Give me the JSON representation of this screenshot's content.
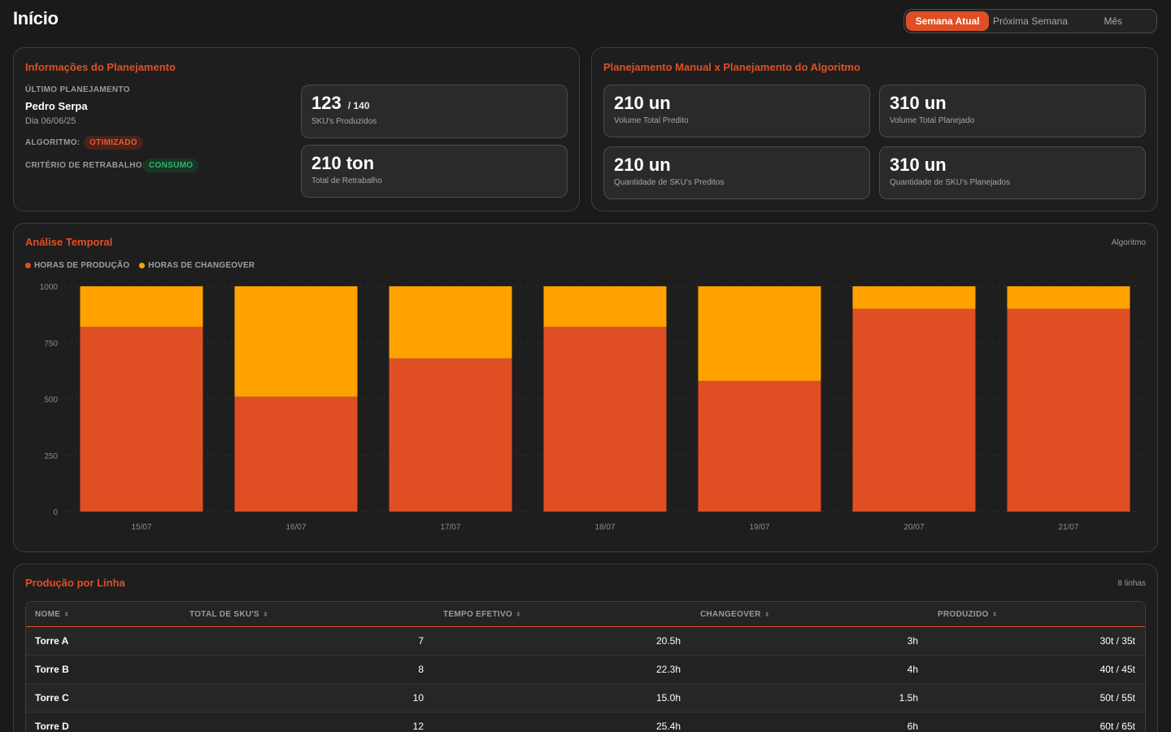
{
  "header": {
    "title": "Início",
    "periods": [
      "Semana Atual",
      "Próxima Semana",
      "Mês"
    ],
    "active_period": "Semana Atual"
  },
  "info_panel": {
    "title": "Informações do Planejamento",
    "last_planning_label": "ÚLTIMO PLANEJAMENTO",
    "planner": "Pedro Serpa",
    "date": "Dia 06/06/25",
    "algorithm_label": "ALGORITMO:",
    "algorithm_value": "OTIMIZADO",
    "rework_label": "CRITÉRIO DE RETRABALHO:",
    "rework_value": "CONSUMO",
    "cards": [
      {
        "value": "123",
        "sub": "/ 140",
        "label": "SKU's Produzidos"
      },
      {
        "value": "210 ton",
        "sub": "",
        "label": "Total de Retrabalho"
      }
    ]
  },
  "compare_panel": {
    "title": "Planejamento Manual x Planejamento do Algoritmo",
    "cards": [
      {
        "value": "210 un",
        "label": "Volume Total Predito"
      },
      {
        "value": "310 un",
        "label": "Volume Total Planejado"
      },
      {
        "value": "210 un",
        "label": "Quantidade de SKU's Preditos"
      },
      {
        "value": "310 un",
        "label": "Quantidade de SKU's Planejados"
      }
    ]
  },
  "chart_panel": {
    "title": "Análise Temporal",
    "side_label": "Algoritmo",
    "legend": [
      "HORAS DE PRODUÇÃO",
      "HORAS DE CHANGEOVER"
    ]
  },
  "chart_data": {
    "type": "bar",
    "stacked": true,
    "categories": [
      "15/07",
      "16/07",
      "17/07",
      "18/07",
      "19/07",
      "20/07",
      "21/07"
    ],
    "series": [
      {
        "name": "HORAS DE PRODUÇÃO",
        "color": "#e04f24",
        "values": [
          820,
          510,
          680,
          820,
          580,
          900,
          900
        ]
      },
      {
        "name": "HORAS DE CHANGEOVER",
        "color": "#ffa200",
        "values": [
          180,
          490,
          320,
          180,
          420,
          100,
          100
        ]
      }
    ],
    "yticks": [
      0,
      250,
      500,
      750,
      1000
    ],
    "ylim": [
      0,
      1000
    ],
    "grid": true,
    "legend_position": "top-left"
  },
  "table_panel": {
    "title": "Produção por Linha",
    "count_label": "8 linhas",
    "columns": [
      "NOME",
      "TOTAL DE SKU'S",
      "TEMPO EFETIVO",
      "CHANGEOVER",
      "PRODUZIDO"
    ],
    "rows": [
      [
        "Torre A",
        "7",
        "20.5h",
        "3h",
        "30t / 35t"
      ],
      [
        "Torre B",
        "8",
        "22.3h",
        "4h",
        "40t / 45t"
      ],
      [
        "Torre C",
        "10",
        "15.0h",
        "1.5h",
        "50t / 55t"
      ],
      [
        "Torre D",
        "12",
        "25.4h",
        "6h",
        "60t / 65t"
      ]
    ]
  }
}
